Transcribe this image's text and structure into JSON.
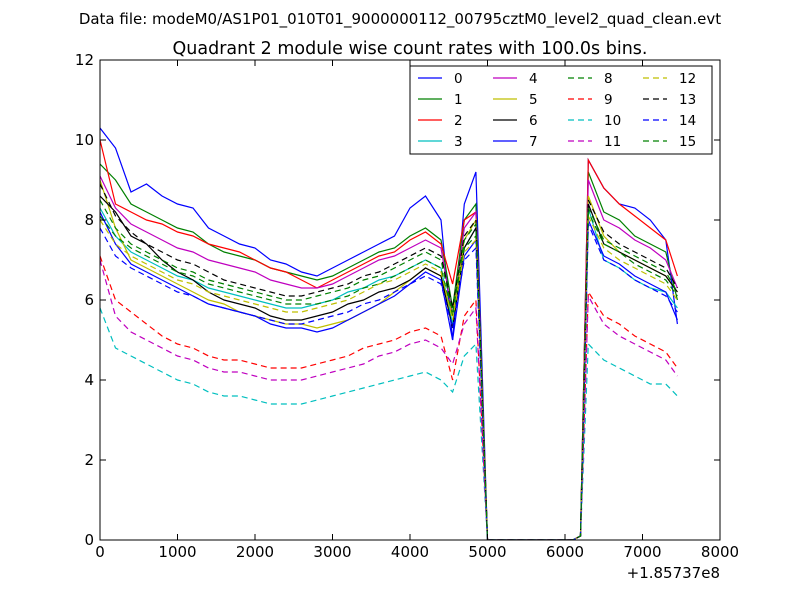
{
  "suptitle": "Data file: modeM0/AS1P01_010T01_9000000112_00795cztM0_level2_quad_clean.evt",
  "chart_data": {
    "type": "line",
    "title": "Quadrant 2 module wise count rates with 100.0s bins.",
    "xlabel": "",
    "ylabel": "",
    "xlim": [
      0,
      8000
    ],
    "ylim": [
      0,
      12
    ],
    "x_ticks": [
      "0",
      "1000",
      "2000",
      "3000",
      "4000",
      "5000",
      "6000",
      "7000",
      "8000"
    ],
    "y_ticks": [
      "0",
      "2",
      "4",
      "6",
      "8",
      "10",
      "12"
    ],
    "x_offset_label": "+1.85737e8",
    "legend_position": "top-right",
    "x": [
      0,
      200,
      400,
      600,
      800,
      1000,
      1200,
      1400,
      1600,
      1800,
      2000,
      2200,
      2400,
      2600,
      2800,
      3000,
      3200,
      3400,
      3600,
      3800,
      4000,
      4200,
      4400,
      4550,
      4700,
      4850,
      5000,
      5100,
      6100,
      6200,
      6300,
      6500,
      6700,
      6900,
      7100,
      7300,
      7450
    ],
    "series": [
      {
        "name": "0",
        "color": "#0000ff",
        "dash": "solid",
        "values": [
          10.3,
          9.8,
          8.7,
          8.9,
          8.6,
          8.4,
          8.3,
          7.8,
          7.6,
          7.4,
          7.3,
          7.0,
          6.9,
          6.7,
          6.6,
          6.8,
          7.0,
          7.2,
          7.4,
          7.6,
          8.3,
          8.6,
          8.0,
          5.0,
          8.4,
          9.2,
          0.0,
          0.0,
          0.0,
          0.1,
          9.5,
          8.8,
          8.4,
          8.3,
          8.0,
          7.5,
          5.4
        ]
      },
      {
        "name": "1",
        "color": "#008000",
        "dash": "solid",
        "values": [
          9.4,
          9.0,
          8.4,
          8.2,
          8.0,
          7.8,
          7.7,
          7.4,
          7.2,
          7.1,
          7.0,
          6.8,
          6.7,
          6.6,
          6.5,
          6.6,
          6.8,
          7.0,
          7.2,
          7.3,
          7.6,
          7.8,
          7.5,
          5.8,
          8.0,
          8.4,
          0.0,
          0.0,
          0.0,
          0.1,
          9.2,
          8.2,
          8.0,
          7.6,
          7.4,
          7.2,
          6.0
        ]
      },
      {
        "name": "2",
        "color": "#ff0000",
        "dash": "solid",
        "values": [
          10.0,
          8.4,
          8.2,
          8.0,
          7.9,
          7.7,
          7.6,
          7.4,
          7.3,
          7.2,
          7.0,
          6.8,
          6.7,
          6.5,
          6.3,
          6.5,
          6.7,
          6.9,
          7.1,
          7.2,
          7.5,
          7.7,
          7.4,
          6.4,
          8.0,
          8.2,
          0.0,
          0.0,
          0.0,
          0.1,
          9.5,
          8.8,
          8.4,
          8.1,
          7.8,
          7.5,
          6.6
        ]
      },
      {
        "name": "3",
        "color": "#00bfbf",
        "dash": "solid",
        "values": [
          8.3,
          7.6,
          7.2,
          7.0,
          6.8,
          6.6,
          6.5,
          6.3,
          6.2,
          6.1,
          6.0,
          5.9,
          5.8,
          5.8,
          5.9,
          6.0,
          6.2,
          6.3,
          6.5,
          6.6,
          6.8,
          7.0,
          6.8,
          5.4,
          7.3,
          7.8,
          0.0,
          0.0,
          0.0,
          0.1,
          8.3,
          7.0,
          6.8,
          6.5,
          6.3,
          6.2,
          5.8
        ]
      },
      {
        "name": "4",
        "color": "#bf00bf",
        "dash": "solid",
        "values": [
          9.1,
          8.3,
          7.9,
          7.7,
          7.5,
          7.3,
          7.2,
          7.0,
          6.9,
          6.8,
          6.7,
          6.5,
          6.4,
          6.3,
          6.3,
          6.4,
          6.6,
          6.8,
          7.0,
          7.1,
          7.3,
          7.5,
          7.3,
          5.6,
          7.8,
          8.2,
          0.0,
          0.0,
          0.0,
          0.1,
          9.0,
          8.0,
          7.8,
          7.5,
          7.3,
          7.0,
          6.3
        ]
      },
      {
        "name": "5",
        "color": "#bfbf00",
        "dash": "solid",
        "values": [
          9.0,
          7.8,
          7.0,
          6.8,
          6.6,
          6.4,
          6.2,
          6.0,
          5.9,
          5.7,
          5.6,
          5.5,
          5.4,
          5.4,
          5.3,
          5.4,
          5.5,
          5.7,
          5.9,
          6.2,
          6.5,
          6.8,
          6.6,
          5.6,
          7.5,
          8.0,
          0.0,
          0.0,
          0.0,
          0.1,
          8.6,
          7.6,
          7.2,
          7.0,
          6.8,
          6.6,
          6.2
        ]
      },
      {
        "name": "6",
        "color": "#000000",
        "dash": "solid",
        "values": [
          8.6,
          8.2,
          7.6,
          7.4,
          7.0,
          6.7,
          6.5,
          6.2,
          6.0,
          5.9,
          5.8,
          5.6,
          5.5,
          5.5,
          5.6,
          5.7,
          5.9,
          6.0,
          6.2,
          6.3,
          6.5,
          6.8,
          6.6,
          5.3,
          7.3,
          7.8,
          0.0,
          0.0,
          0.0,
          0.1,
          8.4,
          7.4,
          7.2,
          7.0,
          6.8,
          6.6,
          6.2
        ]
      },
      {
        "name": "7",
        "color": "#0000ff",
        "dash": "solid",
        "values": [
          8.2,
          7.4,
          6.9,
          6.7,
          6.5,
          6.3,
          6.1,
          5.9,
          5.8,
          5.7,
          5.6,
          5.4,
          5.3,
          5.3,
          5.2,
          5.3,
          5.5,
          5.7,
          5.9,
          6.1,
          6.4,
          6.7,
          6.5,
          5.0,
          7.1,
          7.5,
          0.0,
          0.0,
          0.0,
          0.1,
          8.0,
          7.1,
          6.9,
          6.6,
          6.4,
          6.2,
          5.5
        ]
      },
      {
        "name": "8",
        "color": "#008000",
        "dash": "dashed",
        "values": [
          8.1,
          7.6,
          7.3,
          7.1,
          6.9,
          6.7,
          6.6,
          6.4,
          6.3,
          6.2,
          6.1,
          6.0,
          5.9,
          5.9,
          5.9,
          6.0,
          6.1,
          6.3,
          6.4,
          6.6,
          6.8,
          7.0,
          6.8,
          5.6,
          7.3,
          7.6,
          0.0,
          0.0,
          0.0,
          0.1,
          8.2,
          7.4,
          7.2,
          6.9,
          6.7,
          6.5,
          6.1
        ]
      },
      {
        "name": "9",
        "color": "#ff0000",
        "dash": "dashed",
        "values": [
          7.1,
          6.0,
          5.7,
          5.4,
          5.1,
          4.9,
          4.8,
          4.6,
          4.5,
          4.5,
          4.4,
          4.3,
          4.3,
          4.3,
          4.4,
          4.5,
          4.6,
          4.8,
          4.9,
          5.0,
          5.2,
          5.3,
          5.1,
          4.0,
          5.6,
          6.0,
          0.0,
          0.0,
          0.0,
          0.1,
          6.2,
          5.6,
          5.4,
          5.1,
          4.9,
          4.7,
          4.3
        ]
      },
      {
        "name": "10",
        "color": "#00bfbf",
        "dash": "dashed",
        "values": [
          5.8,
          4.8,
          4.6,
          4.4,
          4.2,
          4.0,
          3.9,
          3.7,
          3.6,
          3.6,
          3.5,
          3.4,
          3.4,
          3.4,
          3.5,
          3.6,
          3.7,
          3.8,
          3.9,
          4.0,
          4.1,
          4.2,
          4.0,
          3.7,
          4.6,
          4.9,
          0.0,
          0.0,
          0.0,
          0.1,
          4.9,
          4.5,
          4.3,
          4.1,
          3.9,
          3.9,
          3.6
        ]
      },
      {
        "name": "11",
        "color": "#bf00bf",
        "dash": "dashed",
        "values": [
          7.0,
          5.6,
          5.2,
          5.0,
          4.8,
          4.6,
          4.5,
          4.3,
          4.2,
          4.2,
          4.1,
          4.0,
          4.0,
          4.0,
          4.1,
          4.2,
          4.3,
          4.4,
          4.6,
          4.7,
          4.9,
          5.0,
          4.8,
          4.4,
          5.4,
          5.8,
          0.0,
          0.0,
          0.0,
          0.1,
          6.1,
          5.4,
          5.1,
          4.9,
          4.7,
          4.5,
          4.1
        ]
      },
      {
        "name": "12",
        "color": "#bfbf00",
        "dash": "dashed",
        "values": [
          8.0,
          7.4,
          7.1,
          6.9,
          6.7,
          6.5,
          6.4,
          6.2,
          6.1,
          6.0,
          5.9,
          5.8,
          5.7,
          5.7,
          5.8,
          5.9,
          6.0,
          6.2,
          6.4,
          6.5,
          6.7,
          6.9,
          6.7,
          5.5,
          7.2,
          7.5,
          0.0,
          0.0,
          0.0,
          0.1,
          8.1,
          7.3,
          7.0,
          6.8,
          6.6,
          6.4,
          6.0
        ]
      },
      {
        "name": "13",
        "color": "#000000",
        "dash": "dashed",
        "values": [
          8.9,
          8.1,
          7.7,
          7.4,
          7.2,
          7.0,
          6.9,
          6.7,
          6.5,
          6.4,
          6.3,
          6.2,
          6.1,
          6.1,
          6.2,
          6.3,
          6.4,
          6.6,
          6.7,
          6.9,
          7.1,
          7.3,
          7.1,
          5.8,
          7.6,
          8.0,
          0.0,
          0.0,
          0.0,
          0.1,
          8.5,
          7.7,
          7.4,
          7.2,
          7.0,
          6.8,
          6.3
        ]
      },
      {
        "name": "14",
        "color": "#0000ff",
        "dash": "dashed",
        "values": [
          7.8,
          7.1,
          6.8,
          6.6,
          6.4,
          6.2,
          6.1,
          5.9,
          5.8,
          5.7,
          5.6,
          5.5,
          5.4,
          5.4,
          5.5,
          5.6,
          5.7,
          5.9,
          6.0,
          6.2,
          6.4,
          6.6,
          6.4,
          5.3,
          7.0,
          7.3,
          0.0,
          0.0,
          0.0,
          0.1,
          7.9,
          7.0,
          6.8,
          6.5,
          6.3,
          6.1,
          5.7
        ]
      },
      {
        "name": "15",
        "color": "#008000",
        "dash": "dashed",
        "values": [
          8.5,
          7.8,
          7.4,
          7.2,
          7.0,
          6.8,
          6.7,
          6.5,
          6.4,
          6.3,
          6.2,
          6.1,
          6.0,
          6.0,
          6.1,
          6.2,
          6.3,
          6.5,
          6.6,
          6.8,
          7.0,
          7.2,
          7.0,
          5.7,
          7.5,
          7.9,
          0.0,
          0.0,
          0.0,
          0.1,
          8.3,
          7.5,
          7.3,
          7.1,
          6.9,
          6.7,
          6.2
        ]
      }
    ]
  }
}
